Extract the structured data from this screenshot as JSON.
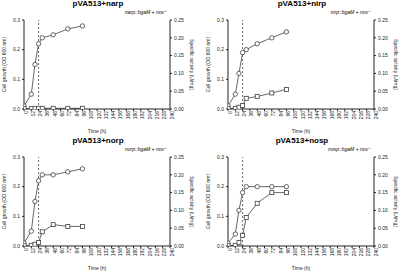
{
  "chart_data": [
    {
      "type": "line",
      "title": "pVA513+narp",
      "subtitle": "narp::bgaM + nov⁺",
      "x_label": "Time (h)",
      "y_label": "Cell growth (OD 600 nm)",
      "y2_label": "Specific activity (U/mg)",
      "reference_x": 24,
      "x": [
        0,
        12,
        18,
        24,
        30,
        48,
        72,
        96
      ],
      "xlim": [
        0,
        240
      ],
      "xticks": [
        0,
        12,
        24,
        36,
        48,
        60,
        72,
        84,
        96,
        108,
        120,
        132,
        144,
        156,
        168,
        180,
        192,
        204,
        216,
        228,
        240
      ],
      "ylim": [
        0,
        0.3
      ],
      "yticks": [
        {
          "value": 0,
          "label": "0.0"
        },
        0.1,
        0.2,
        0.3
      ],
      "y2lim": [
        0,
        0.25
      ],
      "y2ticks": [
        {
          "value": 0,
          "label": "0.00"
        },
        {
          "value": 0.05,
          "label": "0.05"
        },
        {
          "value": 0.1,
          "label": "0.10"
        },
        {
          "value": 0.15,
          "label": "0.15"
        },
        {
          "value": 0.2,
          "label": "0.20"
        },
        {
          "value": 0.25,
          "label": "0.25"
        }
      ],
      "series": [
        {
          "color": "#404040",
          "marker": "circle",
          "values": [
            0.01,
            0.05,
            0.15,
            0.22,
            0.24,
            0.25,
            0.27,
            0.28
          ]
        },
        {
          "color": "#404040",
          "marker": "square",
          "axis": "y2",
          "values": [
            0.001,
            0.001,
            0.001,
            0.002,
            0.002,
            0.002,
            0.002,
            0.002
          ]
        }
      ]
    },
    {
      "type": "line",
      "title": "pVA513+nirp",
      "subtitle": "nirp::bgaM + nov⁺",
      "x_label": "Time (h)",
      "y_label": "Cell growth (OD 600 nm)",
      "y2_label": "Specific activity (U/mg)",
      "reference_x": 24,
      "x": [
        0,
        12,
        18,
        24,
        30,
        48,
        72,
        96
      ],
      "xlim": [
        0,
        240
      ],
      "xticks": [
        0,
        12,
        24,
        36,
        48,
        60,
        72,
        84,
        96,
        108,
        120,
        132,
        144,
        156,
        168,
        180,
        192,
        204,
        216,
        228,
        240
      ],
      "ylim": [
        0,
        0.3
      ],
      "yticks": [
        {
          "value": 0,
          "label": "0.0"
        },
        0.1,
        0.2,
        0.3
      ],
      "y2lim": [
        0,
        0.25
      ],
      "y2ticks": [
        {
          "value": 0,
          "label": "0.00"
        },
        {
          "value": 0.05,
          "label": "0.05"
        },
        {
          "value": 0.1,
          "label": "0.10"
        },
        {
          "value": 0.15,
          "label": "0.15"
        },
        {
          "value": 0.2,
          "label": "0.20"
        },
        {
          "value": 0.25,
          "label": "0.25"
        }
      ],
      "series": [
        {
          "color": "#404040",
          "marker": "circle",
          "values": [
            0.01,
            0.05,
            0.12,
            0.19,
            0.2,
            0.22,
            0.24,
            0.26
          ]
        },
        {
          "color": "#404040",
          "marker": "square",
          "axis": "y2",
          "values": [
            0.001,
            0.002,
            0.005,
            0.01,
            0.03,
            0.035,
            0.045,
            0.055
          ]
        }
      ]
    },
    {
      "type": "line",
      "title": "pVA513+norp",
      "subtitle": "norp::bgaM + nov⁺",
      "x_label": "Time (h)",
      "y_label": "Cell growth (OD 600 nm)",
      "y2_label": "Specific activity (U/mg)",
      "reference_x": 24,
      "x": [
        0,
        12,
        18,
        24,
        30,
        48,
        72,
        96
      ],
      "xlim": [
        0,
        240
      ],
      "xticks": [
        0,
        12,
        24,
        36,
        48,
        60,
        72,
        84,
        96,
        108,
        120,
        132,
        144,
        156,
        168,
        180,
        192,
        204,
        216,
        228,
        240
      ],
      "ylim": [
        0,
        0.3
      ],
      "yticks": [
        {
          "value": 0,
          "label": "0.0"
        },
        0.1,
        0.2,
        0.3
      ],
      "y2lim": [
        0,
        0.25
      ],
      "y2ticks": [
        {
          "value": 0,
          "label": "0.00"
        },
        {
          "value": 0.05,
          "label": "0.05"
        },
        {
          "value": 0.1,
          "label": "0.10"
        },
        {
          "value": 0.15,
          "label": "0.15"
        },
        {
          "value": 0.2,
          "label": "0.20"
        },
        {
          "value": 0.25,
          "label": "0.25"
        }
      ],
      "series": [
        {
          "color": "#404040",
          "marker": "circle",
          "values": [
            0.01,
            0.05,
            0.15,
            0.22,
            0.24,
            0.24,
            0.25,
            0.26
          ]
        },
        {
          "color": "#404040",
          "marker": "square",
          "axis": "y2",
          "values": [
            0.001,
            0.002,
            0.005,
            0.01,
            0.04,
            0.06,
            0.055,
            0.055
          ]
        }
      ]
    },
    {
      "type": "line",
      "title": "pVA513+nosp",
      "subtitle": "nosp::bgaM + nov⁺",
      "x_label": "Time (h)",
      "y_label": "Cell growth (OD 600 nm)",
      "y2_label": "Specific activity (U/mg)",
      "reference_x": 24,
      "x": [
        0,
        12,
        18,
        24,
        30,
        48,
        72,
        96
      ],
      "xlim": [
        0,
        240
      ],
      "xticks": [
        0,
        12,
        24,
        36,
        48,
        60,
        72,
        84,
        96,
        108,
        120,
        132,
        144,
        156,
        168,
        180,
        192,
        204,
        216,
        228,
        240
      ],
      "ylim": [
        0,
        0.3
      ],
      "yticks": [
        {
          "value": 0,
          "label": "0.0"
        },
        0.1,
        0.2,
        0.3
      ],
      "y2lim": [
        0,
        0.25
      ],
      "y2ticks": [
        {
          "value": 0,
          "label": "0.00"
        },
        {
          "value": 0.05,
          "label": "0.05"
        },
        {
          "value": 0.1,
          "label": "0.10"
        },
        {
          "value": 0.15,
          "label": "0.15"
        },
        {
          "value": 0.2,
          "label": "0.20"
        },
        {
          "value": 0.25,
          "label": "0.25"
        }
      ],
      "series": [
        {
          "color": "#404040",
          "marker": "circle",
          "values": [
            0.01,
            0.04,
            0.12,
            0.18,
            0.2,
            0.2,
            0.2,
            0.2
          ]
        },
        {
          "color": "#404040",
          "marker": "square",
          "axis": "y2",
          "values": [
            0.001,
            0.002,
            0.01,
            0.03,
            0.08,
            0.12,
            0.15,
            0.15
          ]
        }
      ]
    }
  ]
}
